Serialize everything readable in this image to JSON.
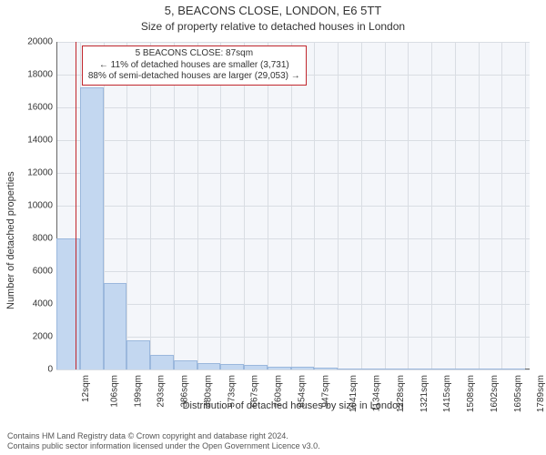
{
  "chart": {
    "type": "histogram",
    "title_main": "5, BEACONS CLOSE, LONDON, E6 5TT",
    "title_sub": "Size of property relative to detached houses in London",
    "title_fontsize": 13,
    "sub_fontsize": 12,
    "background_color": "#ffffff",
    "plot_background_color": "#f4f6fa",
    "grid_color": "#d9dde3",
    "axis_line_color": "#666666",
    "bar_fill": "#c3d7f0",
    "bar_stroke": "#9bb8dd",
    "bar_width_ratio": 1.0,
    "marker_line_color": "#c1272d",
    "annotation_border_color": "#c1272d",
    "x_axis": {
      "label": "Distribution of detached houses by size in London",
      "label_fontsize": 11,
      "min": 12,
      "max": 1900,
      "tick_positions": [
        12,
        106,
        199,
        293,
        386,
        480,
        573,
        667,
        760,
        854,
        947,
        1041,
        1134,
        1228,
        1321,
        1415,
        1508,
        1602,
        1695,
        1789,
        1882
      ],
      "tick_labels": [
        "12sqm",
        "106sqm",
        "199sqm",
        "293sqm",
        "386sqm",
        "480sqm",
        "573sqm",
        "667sqm",
        "760sqm",
        "854sqm",
        "947sqm",
        "1041sqm",
        "1134sqm",
        "1228sqm",
        "1321sqm",
        "1415sqm",
        "1508sqm",
        "1602sqm",
        "1695sqm",
        "1789sqm",
        "1882sqm"
      ],
      "tick_fontsize": 10
    },
    "y_axis": {
      "label": "Number of detached properties",
      "label_fontsize": 11,
      "min": 0,
      "max": 20000,
      "tick_positions": [
        0,
        2000,
        4000,
        6000,
        8000,
        10000,
        12000,
        14000,
        16000,
        18000,
        20000
      ],
      "tick_labels": [
        "0",
        "2000",
        "4000",
        "6000",
        "8000",
        "10000",
        "12000",
        "14000",
        "16000",
        "18000",
        "20000"
      ],
      "tick_fontsize": 10
    },
    "bins": {
      "width": 94,
      "starts": [
        12,
        106,
        199,
        293,
        386,
        480,
        573,
        667,
        760,
        854,
        947,
        1041,
        1134,
        1228,
        1321,
        1415,
        1508,
        1602,
        1695,
        1789
      ],
      "counts": [
        8000,
        17200,
        5300,
        1800,
        900,
        550,
        400,
        350,
        260,
        180,
        140,
        100,
        80,
        70,
        50,
        40,
        30,
        20,
        15,
        10
      ]
    },
    "marker": {
      "value": 87,
      "annotation_lines": [
        "5 BEACONS CLOSE: 87sqm",
        "← 11% of detached houses are smaller (3,731)",
        "88% of semi-detached houses are larger (29,053) →"
      ],
      "annotation_box_left_bin_index": 1,
      "annotation_fontsize": 10
    }
  },
  "footer": {
    "line1": "Contains HM Land Registry data © Crown copyright and database right 2024.",
    "line2": "Contains public sector information licensed under the Open Government Licence v3.0.",
    "fontsize": 9,
    "color": "#555555"
  }
}
